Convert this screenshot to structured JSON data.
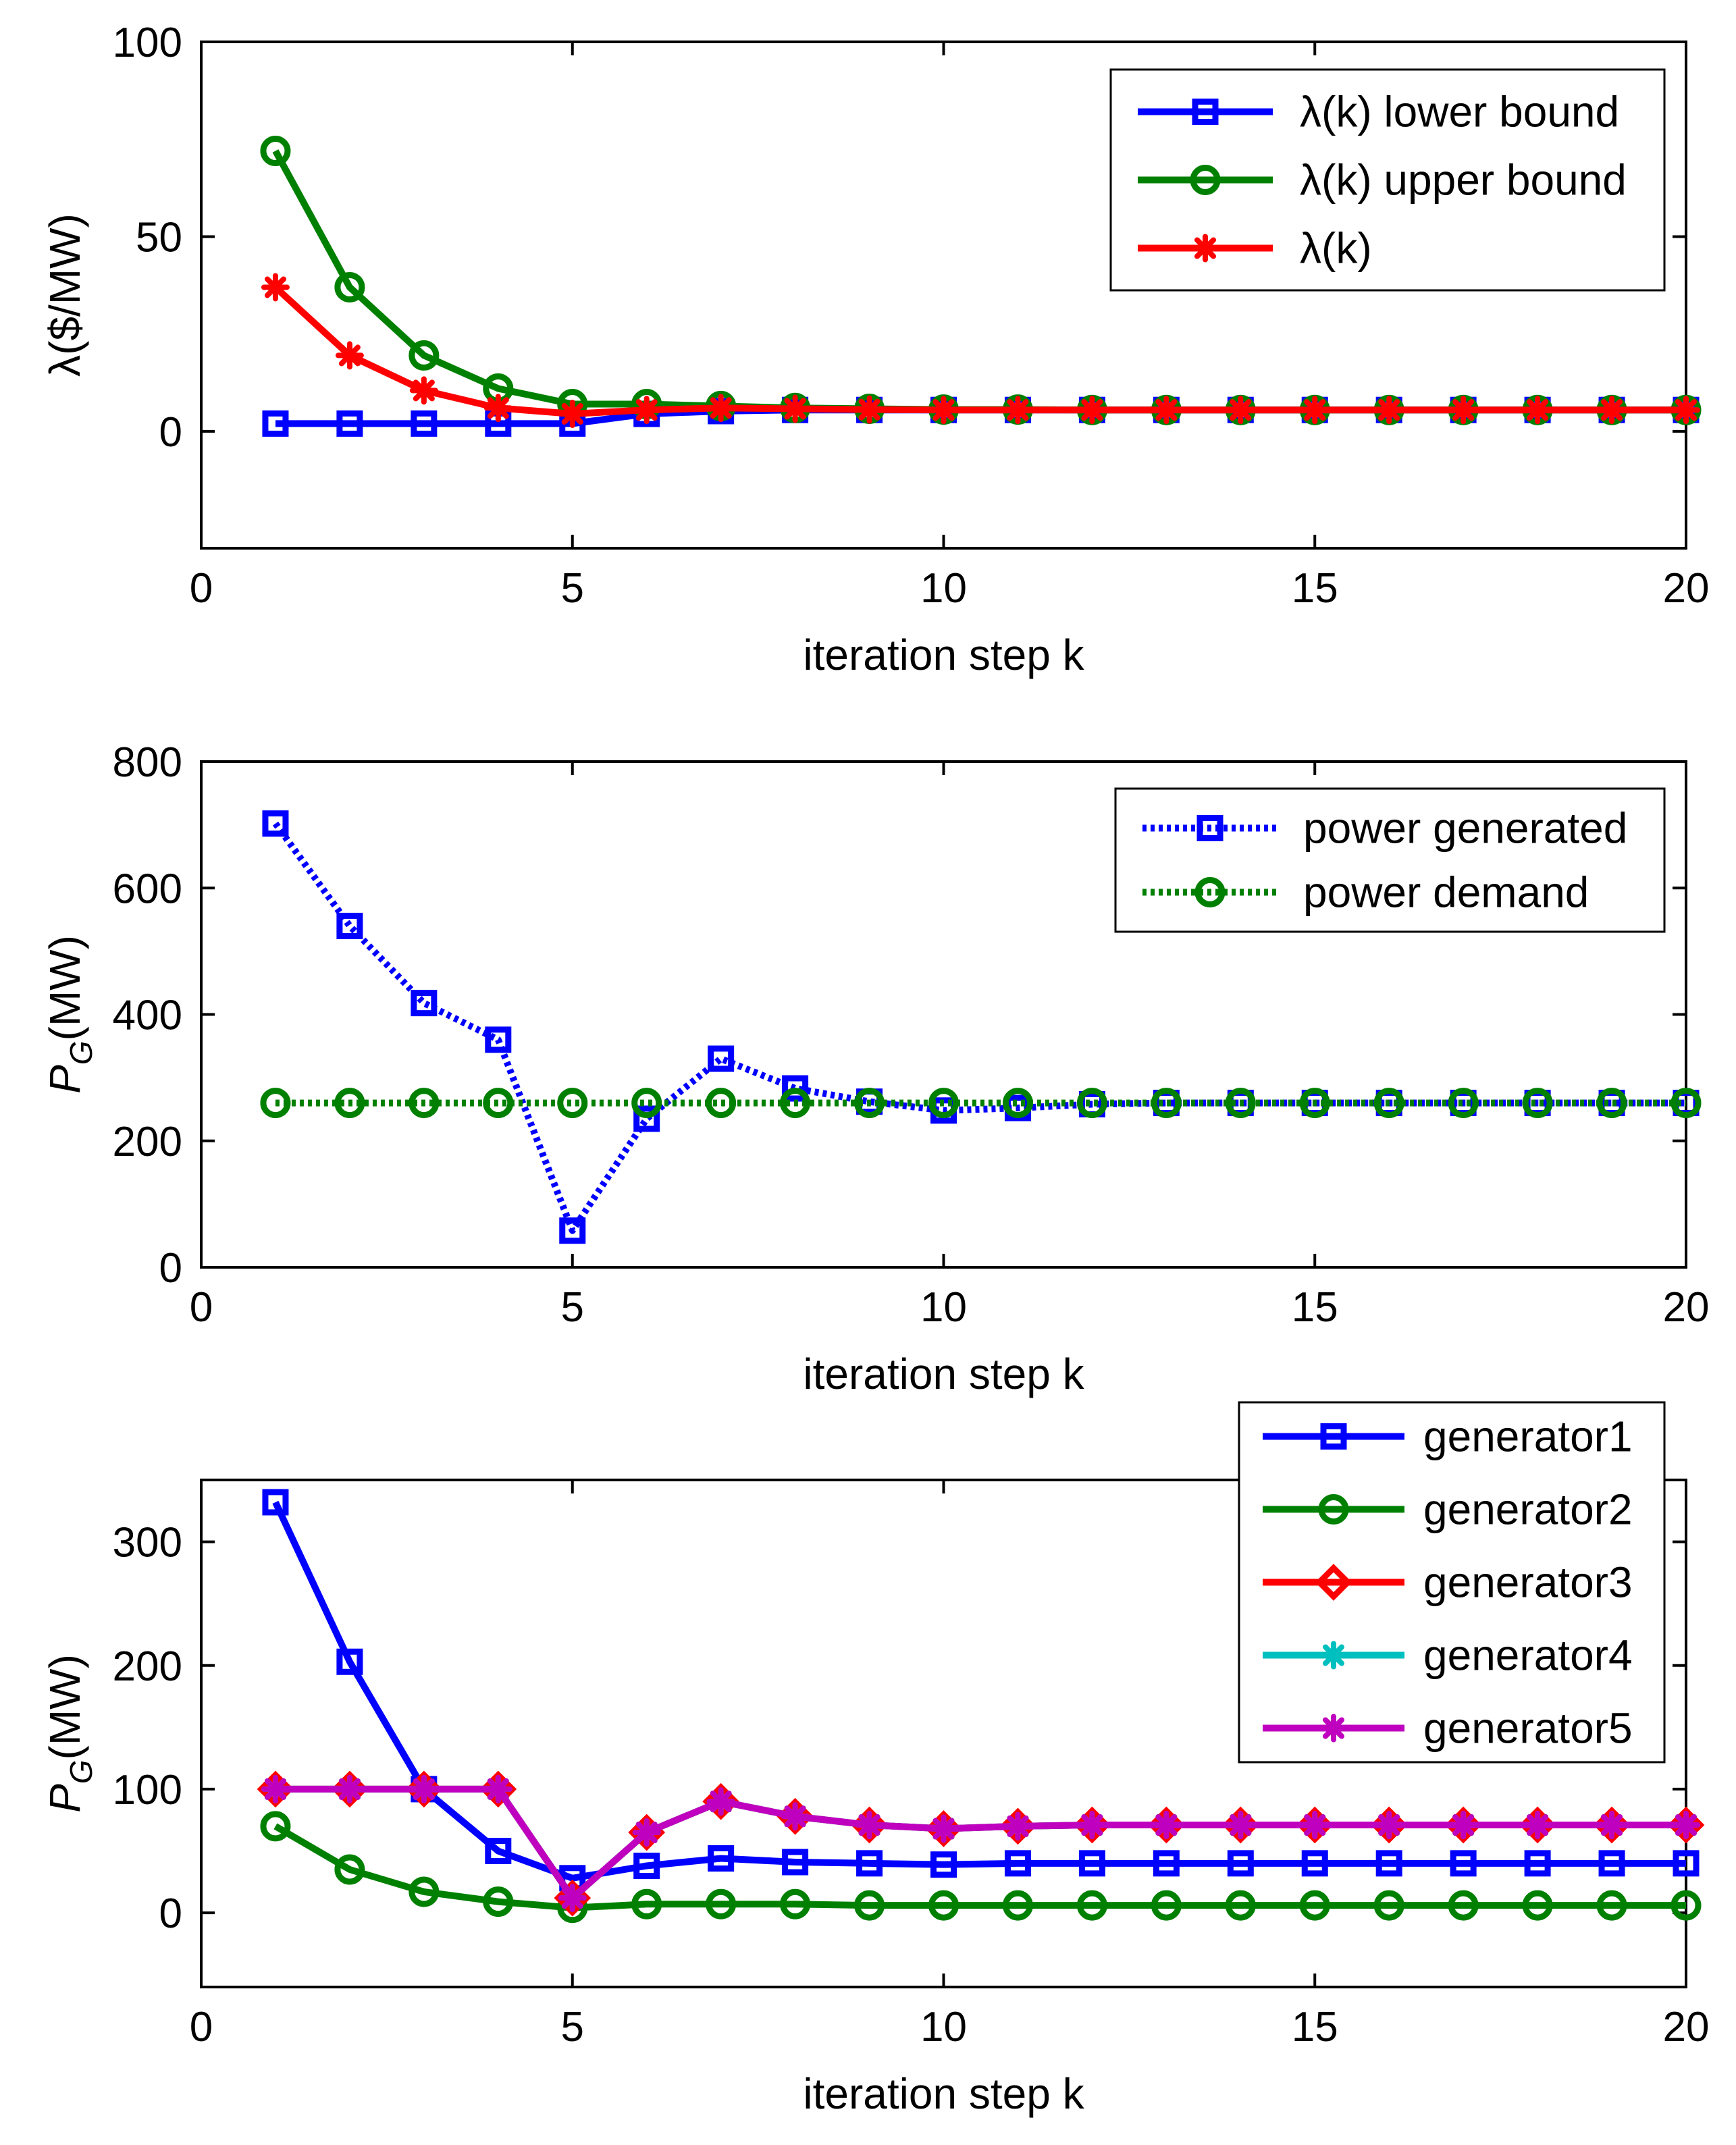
{
  "chart_data": [
    {
      "type": "line",
      "title": "",
      "xlabel": "iteration step k",
      "ylabel": "λ($/MW)",
      "xlim": [
        0,
        20
      ],
      "ylim": [
        -30,
        100
      ],
      "xticks": [
        0,
        5,
        10,
        15,
        20
      ],
      "yticks": [
        0,
        50,
        100
      ],
      "legend_position": "top-right",
      "x": [
        1,
        2,
        3,
        4,
        5,
        6,
        7,
        8,
        9,
        10,
        11,
        12,
        13,
        14,
        15,
        16,
        17,
        18,
        19,
        20
      ],
      "series": [
        {
          "name": "λ(k) lower bound",
          "color": "#0000ff",
          "marker": "square",
          "dash": "solid",
          "values": [
            2,
            2,
            2,
            2,
            2,
            4.5,
            5.2,
            5.5,
            5.5,
            5.5,
            5.5,
            5.5,
            5.5,
            5.5,
            5.5,
            5.5,
            5.5,
            5.5,
            5.5,
            5.5
          ]
        },
        {
          "name": "λ(k) upper bound",
          "color": "#008000",
          "marker": "circle",
          "dash": "solid",
          "values": [
            72,
            37,
            19.5,
            11,
            7,
            7,
            6.5,
            6,
            5.8,
            5.6,
            5.6,
            5.5,
            5.5,
            5.5,
            5.5,
            5.5,
            5.5,
            5.5,
            5.5,
            5.5
          ]
        },
        {
          "name": "λ(k)",
          "color": "#ff0000",
          "marker": "star",
          "dash": "solid",
          "values": [
            37,
            19.5,
            10.5,
            6,
            4.5,
            5.5,
            6,
            5.8,
            5.6,
            5.5,
            5.5,
            5.5,
            5.5,
            5.5,
            5.5,
            5.5,
            5.5,
            5.5,
            5.5,
            5.5
          ]
        }
      ]
    },
    {
      "type": "line",
      "title": "",
      "xlabel": "iteration step k",
      "ylabel_main": "P",
      "ylabel_sub": "G",
      "ylabel_unit": "(MW)",
      "xlim": [
        0,
        20
      ],
      "ylim": [
        0,
        800
      ],
      "xticks": [
        0,
        5,
        10,
        15,
        20
      ],
      "yticks": [
        0,
        200,
        400,
        600,
        800
      ],
      "legend_position": "top-right",
      "x": [
        1,
        2,
        3,
        4,
        5,
        6,
        7,
        8,
        9,
        10,
        11,
        12,
        13,
        14,
        15,
        16,
        17,
        18,
        19,
        20
      ],
      "series": [
        {
          "name": "power generated",
          "color": "#0000ff",
          "marker": "square",
          "dash": "dotted",
          "values": [
            702,
            540,
            418,
            360,
            58,
            235,
            330,
            283,
            262,
            248,
            252,
            258,
            260,
            260,
            260,
            260,
            260,
            260,
            260,
            260
          ]
        },
        {
          "name": "power demand",
          "color": "#008000",
          "marker": "circle",
          "dash": "dotted",
          "values": [
            260,
            260,
            260,
            260,
            260,
            260,
            260,
            260,
            260,
            260,
            260,
            260,
            260,
            260,
            260,
            260,
            260,
            260,
            260,
            260
          ]
        }
      ]
    },
    {
      "type": "line",
      "title": "",
      "xlabel": "iteration step k",
      "ylabel_main": "P",
      "ylabel_sub": "G",
      "ylabel_unit": "(MW)",
      "xlim": [
        0,
        20
      ],
      "ylim": [
        -60,
        350
      ],
      "xticks": [
        0,
        5,
        10,
        15,
        20
      ],
      "yticks": [
        0,
        100,
        200,
        300
      ],
      "legend_position": "top-right",
      "x": [
        1,
        2,
        3,
        4,
        5,
        6,
        7,
        8,
        9,
        10,
        11,
        12,
        13,
        14,
        15,
        16,
        17,
        18,
        19,
        20
      ],
      "series": [
        {
          "name": "generator1",
          "color": "#0000ff",
          "marker": "square",
          "dash": "solid",
          "values": [
            332,
            203,
            100,
            50,
            28,
            38,
            44,
            41,
            40,
            39,
            40,
            40,
            40,
            40,
            40,
            40,
            40,
            40,
            40,
            40
          ]
        },
        {
          "name": "generator2",
          "color": "#008000",
          "marker": "circle",
          "dash": "solid",
          "values": [
            70,
            35,
            17,
            9,
            4,
            7,
            7,
            7,
            6,
            6,
            6,
            6,
            6,
            6,
            6,
            6,
            6,
            6,
            6,
            6
          ]
        },
        {
          "name": "generator3",
          "color": "#ff0000",
          "marker": "diamond",
          "dash": "solid",
          "values": [
            100,
            100,
            100,
            100,
            12,
            65,
            90,
            78,
            71,
            68,
            70,
            71,
            71,
            71,
            71,
            71,
            71,
            71,
            71,
            71
          ]
        },
        {
          "name": "generator4",
          "color": "#00bfbf",
          "marker": "star",
          "dash": "solid",
          "values": [
            100,
            100,
            100,
            100,
            12,
            65,
            90,
            78,
            71,
            68,
            70,
            71,
            71,
            71,
            71,
            71,
            71,
            71,
            71,
            71
          ]
        },
        {
          "name": "generator5",
          "color": "#bf00bf",
          "marker": "star",
          "dash": "solid",
          "values": [
            100,
            100,
            100,
            100,
            12,
            65,
            90,
            78,
            71,
            68,
            70,
            71,
            71,
            71,
            71,
            71,
            71,
            71,
            71,
            71
          ]
        }
      ]
    }
  ]
}
